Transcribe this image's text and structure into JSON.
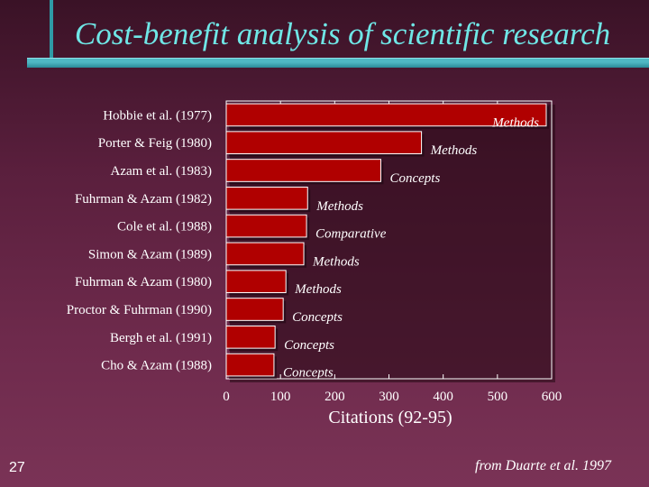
{
  "slide": {
    "title": "Cost-benefit analysis of scientific research",
    "page_number": "27",
    "source": "from Duarte et al. 1997"
  },
  "chart_data": {
    "type": "bar",
    "orientation": "horizontal",
    "categories": [
      "Hobbie et al. (1977)",
      "Porter & Feig (1980)",
      "Azam et al. (1983)",
      "Fuhrman & Azam (1982)",
      "Cole et al. (1988)",
      "Simon & Azam (1989)",
      "Fuhrman & Azam (1980)",
      "Proctor & Fuhrman (1990)",
      "Bergh et al. (1991)",
      "Cho & Azam (1988)"
    ],
    "values": [
      590,
      360,
      285,
      150,
      148,
      143,
      110,
      105,
      90,
      88
    ],
    "types": [
      "Methods",
      "Methods",
      "Concepts",
      "Methods",
      "Comparative",
      "Methods",
      "Methods",
      "Concepts",
      "Concepts",
      "Concepts"
    ],
    "xlabel": "Citations (92-95)",
    "xlim": [
      0,
      600
    ],
    "xticks": [
      "0",
      "100",
      "200",
      "300",
      "400",
      "500",
      "600"
    ],
    "bar_color": "#b00000",
    "grid": false
  }
}
